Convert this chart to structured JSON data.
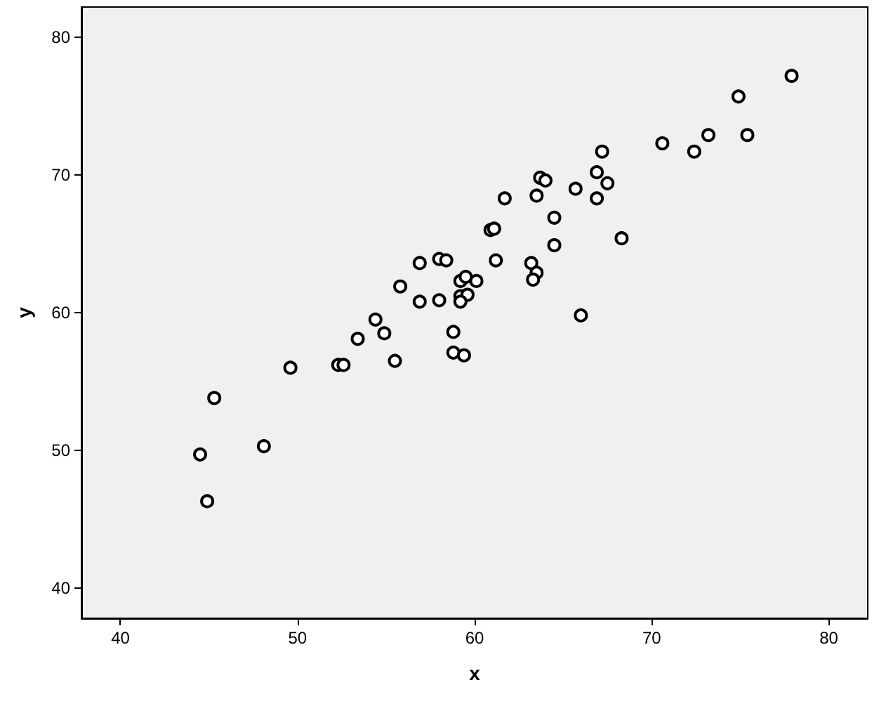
{
  "chart_data": {
    "type": "scatter",
    "xlabel": "x",
    "ylabel": "y",
    "x": [
      44.5,
      44.9,
      45.3,
      48.1,
      49.6,
      52.3,
      52.6,
      53.4,
      54.4,
      54.9,
      55.5,
      55.8,
      56.9,
      56.9,
      58.0,
      58.4,
      58.0,
      58.8,
      58.8,
      59.4,
      59.2,
      59.5,
      60.1,
      59.2,
      59.6,
      59.2,
      60.9,
      61.1,
      61.2,
      61.7,
      63.2,
      63.5,
      63.3,
      63.5,
      63.7,
      64.0,
      64.5,
      64.5,
      65.7,
      66.0,
      66.9,
      66.9,
      67.2,
      67.5,
      68.3,
      70.6,
      72.4,
      73.2,
      74.9,
      75.4,
      77.9
    ],
    "values": [
      49.7,
      46.3,
      53.8,
      50.3,
      56.0,
      56.2,
      56.2,
      58.1,
      59.5,
      58.5,
      56.5,
      61.9,
      63.6,
      60.8,
      63.9,
      63.8,
      60.9,
      58.6,
      57.1,
      56.9,
      62.3,
      62.6,
      62.3,
      61.2,
      61.3,
      60.8,
      66.0,
      66.1,
      63.8,
      68.3,
      63.6,
      62.9,
      62.4,
      68.5,
      69.8,
      69.6,
      66.9,
      64.9,
      69.0,
      59.8,
      70.2,
      68.3,
      71.7,
      69.4,
      65.4,
      72.3,
      71.7,
      72.9,
      75.7,
      72.9,
      77.2
    ],
    "color": "#000000",
    "marker": "circle",
    "grid": false,
    "xlim": [
      37.8,
      82.2
    ],
    "xticks": [
      40,
      50,
      60,
      70,
      80
    ],
    "ylim": [
      37.8,
      82.2
    ],
    "yticks": [
      40,
      50,
      60,
      70,
      80
    ]
  }
}
